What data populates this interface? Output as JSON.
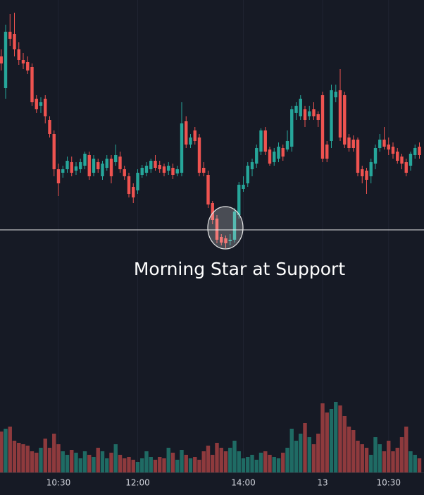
{
  "chart_data": {
    "type": "candlestick",
    "annotation": "Morning Star at Support",
    "support_level": 34,
    "categories": [
      null,
      null,
      null,
      null,
      null,
      null,
      null,
      null,
      null,
      null,
      null,
      null,
      null,
      "10:30",
      null,
      null,
      null,
      null,
      null,
      null,
      null,
      null,
      null,
      null,
      null,
      null,
      null,
      null,
      null,
      null,
      null,
      "12:00",
      null,
      null,
      null,
      null,
      null,
      null,
      null,
      null,
      null,
      null,
      null,
      null,
      null,
      null,
      null,
      null,
      null,
      null,
      null,
      null,
      null,
      null,
      null,
      "14:00",
      null,
      null,
      null,
      null,
      null,
      null,
      null,
      null,
      null,
      null,
      null,
      null,
      null,
      null,
      null,
      null,
      null,
      "13",
      null,
      null,
      null,
      null,
      null,
      null,
      null,
      null,
      null,
      null,
      null,
      null,
      null,
      null,
      "10:30",
      null,
      null,
      null,
      null,
      null,
      null,
      null
    ],
    "open": [
      280,
      235,
      315,
      312,
      290,
      275,
      272,
      265,
      220,
      210,
      220,
      190,
      170,
      120,
      115,
      120,
      130,
      118,
      120,
      125,
      140,
      115,
      130,
      110,
      122,
      135,
      130,
      138,
      120,
      110,
      95,
      90,
      112,
      115,
      120,
      132,
      126,
      124,
      118,
      122,
      114,
      115,
      188,
      155,
      175,
      165,
      122,
      112,
      72,
      50,
      24,
      22,
      18,
      20,
      55,
      92,
      100,
      120,
      128,
      145,
      175,
      148,
      130,
      135,
      150,
      148,
      152,
      200,
      195,
      205,
      195,
      205,
      198,
      225,
      155,
      160,
      222,
      232,
      225,
      165,
      162,
      162,
      120,
      118,
      110,
      128,
      150,
      162,
      155,
      152,
      145,
      138,
      130,
      125,
      140,
      152
    ],
    "high": [
      290,
      325,
      340,
      342,
      300,
      285,
      280,
      270,
      225,
      222,
      225,
      195,
      175,
      128,
      125,
      138,
      138,
      130,
      135,
      145,
      145,
      140,
      135,
      132,
      140,
      140,
      155,
      145,
      125,
      115,
      100,
      120,
      126,
      130,
      135,
      140,
      132,
      128,
      130,
      128,
      125,
      215,
      195,
      170,
      180,
      170,
      130,
      118,
      75,
      55,
      28,
      26,
      28,
      65,
      102,
      110,
      130,
      135,
      155,
      178,
      180,
      152,
      150,
      158,
      155,
      175,
      210,
      215,
      225,
      210,
      210,
      215,
      202,
      230,
      160,
      240,
      240,
      262,
      230,
      170,
      168,
      165,
      125,
      122,
      135,
      155,
      170,
      180,
      165,
      158,
      150,
      142,
      135,
      145,
      155,
      158
    ],
    "low": [
      260,
      220,
      295,
      280,
      268,
      262,
      255,
      210,
      200,
      200,
      185,
      165,
      110,
      82,
      108,
      115,
      110,
      112,
      115,
      120,
      105,
      110,
      115,
      105,
      118,
      100,
      125,
      115,
      105,
      80,
      72,
      85,
      108,
      110,
      115,
      118,
      115,
      110,
      112,
      106,
      110,
      110,
      150,
      150,
      155,
      110,
      110,
      65,
      42,
      15,
      12,
      8,
      12,
      16,
      50,
      88,
      95,
      110,
      122,
      140,
      140,
      125,
      125,
      130,
      132,
      145,
      145,
      190,
      190,
      180,
      190,
      190,
      180,
      130,
      130,
      150,
      215,
      160,
      150,
      145,
      145,
      110,
      100,
      85,
      100,
      120,
      145,
      148,
      140,
      135,
      128,
      120,
      110,
      118,
      135,
      135
    ],
    "close": [
      270,
      315,
      305,
      290,
      275,
      270,
      260,
      215,
      205,
      215,
      195,
      170,
      120,
      100,
      120,
      132,
      115,
      124,
      130,
      142,
      110,
      135,
      120,
      128,
      135,
      110,
      140,
      120,
      110,
      85,
      80,
      115,
      122,
      125,
      132,
      122,
      120,
      115,
      125,
      112,
      120,
      185,
      155,
      165,
      160,
      115,
      115,
      70,
      48,
      20,
      16,
      15,
      20,
      60,
      98,
      98,
      125,
      130,
      150,
      175,
      145,
      128,
      145,
      152,
      138,
      160,
      205,
      210,
      220,
      190,
      202,
      195,
      190,
      135,
      135,
      232,
      230,
      165,
      155,
      150,
      150,
      115,
      110,
      105,
      130,
      150,
      162,
      152,
      148,
      142,
      132,
      128,
      115,
      142,
      150,
      140
    ],
    "volume": [
      58,
      62,
      65,
      45,
      42,
      40,
      38,
      30,
      28,
      35,
      48,
      35,
      55,
      40,
      30,
      25,
      32,
      28,
      20,
      30,
      25,
      22,
      35,
      30,
      20,
      28,
      40,
      25,
      20,
      22,
      18,
      15,
      20,
      30,
      22,
      18,
      22,
      20,
      35,
      28,
      18,
      32,
      25,
      20,
      22,
      18,
      30,
      38,
      25,
      42,
      35,
      30,
      35,
      45,
      30,
      20,
      22,
      25,
      18,
      28,
      30,
      25,
      22,
      20,
      28,
      35,
      62,
      45,
      55,
      70,
      50,
      40,
      55,
      98,
      85,
      90,
      100,
      95,
      80,
      65,
      60,
      45,
      40,
      35,
      25,
      50,
      40,
      30,
      45,
      30,
      35,
      50,
      65,
      30,
      25,
      20
    ],
    "up_color": "#26a69a",
    "down_color": "#ef5350",
    "up_volume_color": "#1f6b64",
    "down_volume_color": "#8e3a3d",
    "ylim": [
      0,
      360
    ],
    "volume_ylim": [
      0,
      300
    ],
    "grid": true
  }
}
